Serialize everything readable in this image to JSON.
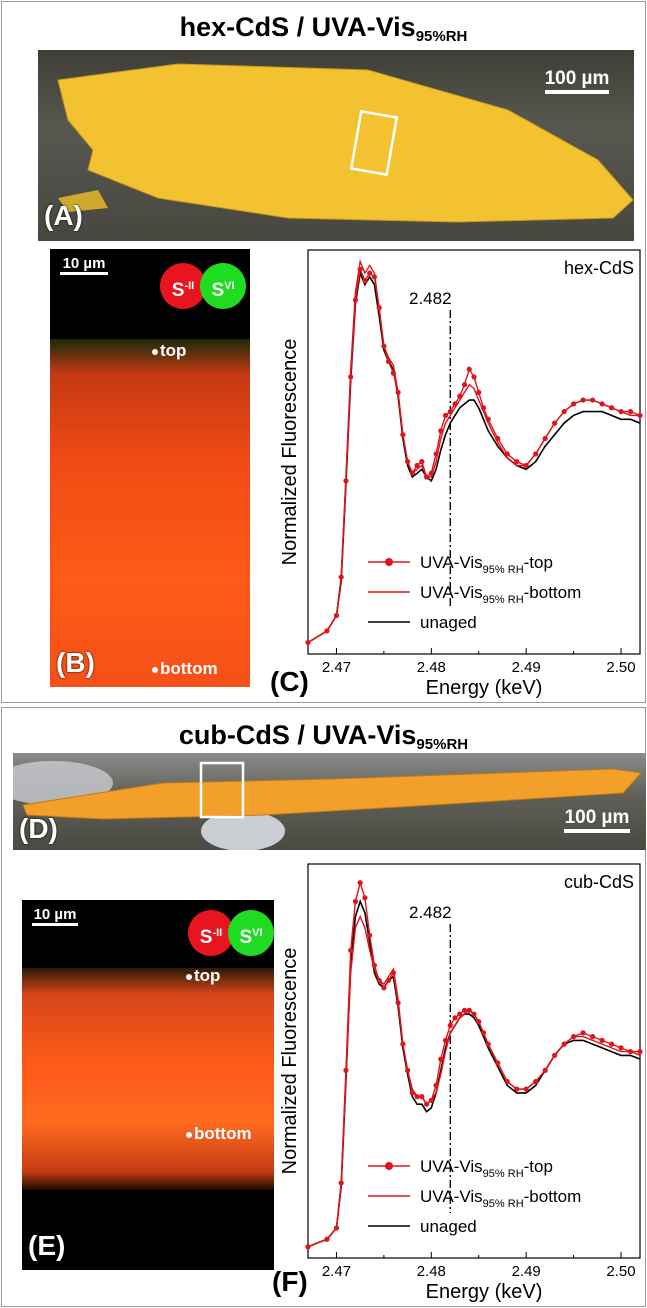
{
  "figure": {
    "top": {
      "title_main": "hex-CdS / UVA-Vis",
      "title_sub": "95%RH",
      "panel_a": {
        "letter": "(A)",
        "scale_label": "100 µm"
      },
      "panel_b": {
        "letter": "(B)",
        "scale_label": "10 µm",
        "marker_top": "top",
        "marker_bottom": "bottom",
        "legend": {
          "left_main": "S",
          "left_sup": "-II",
          "right_main": "S",
          "right_sup": "VI"
        }
      },
      "panel_c_letter": "(C)"
    },
    "bottom": {
      "title_main": "cub-CdS / UVA-Vis",
      "title_sub": "95%RH",
      "panel_d": {
        "letter": "(D)",
        "scale_label": "100 µm"
      },
      "panel_e": {
        "letter": "(E)",
        "scale_label": "10 µm",
        "marker_top": "top",
        "marker_bottom": "bottom",
        "legend": {
          "left_main": "S",
          "left_sup": "-II",
          "right_main": "S",
          "right_sup": "VI"
        }
      },
      "panel_f_letter": "(F)"
    }
  },
  "colors": {
    "pigment_yellow": "#f2c230",
    "pigment_orange": "#f2a02a",
    "xrf_red": "#ff3d10",
    "s2_red": "#e8141e",
    "s6_green": "#1fdc22",
    "series_red": "#e0141b",
    "series_black": "#000000"
  },
  "chart_data": [
    {
      "type": "line",
      "inner_label": "hex-CdS",
      "xlabel": "Energy (keV)",
      "ylabel": "Normalized Fluorescence",
      "xlim": [
        2.467,
        2.502
      ],
      "x_ticks": [
        "2.47",
        "2.48",
        "2.49",
        "2.50"
      ],
      "x_tick_values": [
        2.47,
        2.48,
        2.49,
        2.5
      ],
      "ylim": [
        0,
        1.05
      ],
      "annotation": {
        "label": "2.482",
        "x": 2.482
      },
      "legend": {
        "position": "bottom-right",
        "entries": [
          {
            "main": "UVA-Vis",
            "sub": "95% RH",
            "tail": "-top"
          },
          {
            "main": "UVA-Vis",
            "sub": "95% RH",
            "tail": "-bottom"
          },
          {
            "main": "unaged",
            "sub": "",
            "tail": ""
          }
        ]
      },
      "series": [
        {
          "style": "red-dots",
          "x": [
            2.467,
            2.469,
            2.47,
            2.4705,
            2.471,
            2.4715,
            2.472,
            2.4725,
            2.473,
            2.4735,
            2.474,
            2.4745,
            2.475,
            2.4755,
            2.476,
            2.4765,
            2.477,
            2.4775,
            2.478,
            2.4785,
            2.479,
            2.4795,
            2.48,
            2.4805,
            2.481,
            2.4815,
            2.482,
            2.4825,
            2.483,
            2.4835,
            2.484,
            2.4845,
            2.485,
            2.4855,
            2.486,
            2.487,
            2.488,
            2.489,
            2.49,
            2.491,
            2.492,
            2.493,
            2.494,
            2.495,
            2.496,
            2.497,
            2.498,
            2.499,
            2.5,
            2.501,
            2.502
          ],
          "y": [
            0.03,
            0.06,
            0.1,
            0.2,
            0.45,
            0.72,
            0.92,
            1.0,
            0.97,
            0.99,
            0.98,
            0.9,
            0.8,
            0.76,
            0.73,
            0.68,
            0.57,
            0.5,
            0.47,
            0.49,
            0.5,
            0.46,
            0.47,
            0.52,
            0.58,
            0.62,
            0.63,
            0.65,
            0.67,
            0.7,
            0.74,
            0.72,
            0.68,
            0.64,
            0.61,
            0.56,
            0.52,
            0.5,
            0.49,
            0.52,
            0.56,
            0.6,
            0.63,
            0.65,
            0.66,
            0.66,
            0.65,
            0.64,
            0.63,
            0.63,
            0.62
          ]
        },
        {
          "style": "red-line",
          "x": [
            2.467,
            2.469,
            2.47,
            2.4705,
            2.471,
            2.4715,
            2.472,
            2.4725,
            2.473,
            2.4735,
            2.474,
            2.4745,
            2.475,
            2.4755,
            2.476,
            2.4765,
            2.477,
            2.4775,
            2.478,
            2.4785,
            2.479,
            2.4795,
            2.48,
            2.4805,
            2.481,
            2.4815,
            2.482,
            2.4825,
            2.483,
            2.4835,
            2.484,
            2.4845,
            2.485,
            2.4855,
            2.486,
            2.487,
            2.488,
            2.489,
            2.49,
            2.491,
            2.492,
            2.493,
            2.494,
            2.495,
            2.496,
            2.497,
            2.498,
            2.499,
            2.5,
            2.501,
            2.502
          ],
          "y": [
            0.03,
            0.06,
            0.1,
            0.2,
            0.46,
            0.74,
            0.94,
            1.02,
            0.99,
            1.01,
            0.99,
            0.9,
            0.8,
            0.77,
            0.75,
            0.68,
            0.57,
            0.5,
            0.47,
            0.48,
            0.49,
            0.46,
            0.46,
            0.5,
            0.56,
            0.6,
            0.62,
            0.64,
            0.66,
            0.68,
            0.7,
            0.69,
            0.66,
            0.63,
            0.6,
            0.55,
            0.51,
            0.49,
            0.49,
            0.52,
            0.56,
            0.6,
            0.63,
            0.65,
            0.66,
            0.66,
            0.65,
            0.64,
            0.63,
            0.62,
            0.62
          ]
        },
        {
          "style": "black-line",
          "x": [
            2.467,
            2.469,
            2.47,
            2.4705,
            2.471,
            2.4715,
            2.472,
            2.4725,
            2.473,
            2.4735,
            2.474,
            2.4745,
            2.475,
            2.4755,
            2.476,
            2.4765,
            2.477,
            2.4775,
            2.478,
            2.4785,
            2.479,
            2.4795,
            2.48,
            2.4805,
            2.481,
            2.4815,
            2.482,
            2.4825,
            2.483,
            2.4835,
            2.484,
            2.4845,
            2.485,
            2.4855,
            2.486,
            2.487,
            2.488,
            2.489,
            2.49,
            2.491,
            2.492,
            2.493,
            2.494,
            2.495,
            2.496,
            2.497,
            2.498,
            2.499,
            2.5,
            2.501,
            2.502
          ],
          "y": [
            0.03,
            0.06,
            0.1,
            0.19,
            0.44,
            0.71,
            0.91,
            0.99,
            0.96,
            0.98,
            0.96,
            0.88,
            0.79,
            0.76,
            0.74,
            0.67,
            0.56,
            0.49,
            0.46,
            0.47,
            0.48,
            0.46,
            0.45,
            0.48,
            0.53,
            0.57,
            0.6,
            0.62,
            0.64,
            0.65,
            0.66,
            0.66,
            0.64,
            0.61,
            0.58,
            0.54,
            0.51,
            0.49,
            0.48,
            0.5,
            0.54,
            0.57,
            0.6,
            0.62,
            0.63,
            0.63,
            0.63,
            0.62,
            0.61,
            0.61,
            0.6
          ]
        }
      ]
    },
    {
      "type": "line",
      "inner_label": "cub-CdS",
      "xlabel": "Energy (keV)",
      "ylabel": "Normalized Fluorescence",
      "xlim": [
        2.467,
        2.502
      ],
      "x_ticks": [
        "2.47",
        "2.48",
        "2.49",
        "2.50"
      ],
      "x_tick_values": [
        2.47,
        2.48,
        2.49,
        2.5
      ],
      "ylim": [
        0,
        1.05
      ],
      "annotation": {
        "label": "2.482",
        "x": 2.482
      },
      "legend": {
        "position": "bottom-right",
        "entries": [
          {
            "main": "UVA-Vis",
            "sub": "95% RH",
            "tail": "-top"
          },
          {
            "main": "UVA-Vis",
            "sub": "95% RH",
            "tail": "-bottom"
          },
          {
            "main": "unaged",
            "sub": "",
            "tail": ""
          }
        ]
      },
      "series": [
        {
          "style": "red-dots",
          "x": [
            2.467,
            2.469,
            2.47,
            2.4705,
            2.471,
            2.4715,
            2.472,
            2.4725,
            2.473,
            2.4735,
            2.474,
            2.4745,
            2.475,
            2.4755,
            2.476,
            2.4765,
            2.477,
            2.4775,
            2.478,
            2.4785,
            2.479,
            2.4795,
            2.48,
            2.4805,
            2.481,
            2.4815,
            2.482,
            2.4825,
            2.483,
            2.4835,
            2.484,
            2.4845,
            2.485,
            2.4855,
            2.486,
            2.487,
            2.488,
            2.489,
            2.49,
            2.491,
            2.492,
            2.493,
            2.494,
            2.495,
            2.496,
            2.497,
            2.498,
            2.499,
            2.5,
            2.501,
            2.502
          ],
          "y": [
            0.03,
            0.05,
            0.08,
            0.2,
            0.5,
            0.82,
            0.95,
            1.0,
            0.96,
            0.86,
            0.78,
            0.74,
            0.72,
            0.74,
            0.76,
            0.68,
            0.57,
            0.5,
            0.44,
            0.43,
            0.43,
            0.41,
            0.42,
            0.46,
            0.53,
            0.58,
            0.62,
            0.64,
            0.65,
            0.66,
            0.66,
            0.65,
            0.63,
            0.6,
            0.57,
            0.52,
            0.47,
            0.45,
            0.45,
            0.47,
            0.5,
            0.54,
            0.57,
            0.59,
            0.6,
            0.59,
            0.58,
            0.57,
            0.56,
            0.55,
            0.55
          ]
        },
        {
          "style": "red-line",
          "x": [
            2.467,
            2.469,
            2.47,
            2.4705,
            2.471,
            2.4715,
            2.472,
            2.4725,
            2.473,
            2.4735,
            2.474,
            2.4745,
            2.475,
            2.4755,
            2.476,
            2.4765,
            2.477,
            2.4775,
            2.478,
            2.4785,
            2.479,
            2.4795,
            2.48,
            2.4805,
            2.481,
            2.4815,
            2.482,
            2.4825,
            2.483,
            2.4835,
            2.484,
            2.4845,
            2.485,
            2.4855,
            2.486,
            2.487,
            2.488,
            2.489,
            2.49,
            2.491,
            2.492,
            2.493,
            2.494,
            2.495,
            2.496,
            2.497,
            2.498,
            2.499,
            2.5,
            2.501,
            2.502
          ],
          "y": [
            0.03,
            0.05,
            0.08,
            0.2,
            0.48,
            0.76,
            0.88,
            0.91,
            0.88,
            0.82,
            0.77,
            0.74,
            0.73,
            0.75,
            0.77,
            0.69,
            0.57,
            0.5,
            0.45,
            0.43,
            0.43,
            0.41,
            0.42,
            0.44,
            0.49,
            0.55,
            0.6,
            0.62,
            0.64,
            0.65,
            0.66,
            0.65,
            0.63,
            0.6,
            0.57,
            0.52,
            0.47,
            0.45,
            0.45,
            0.47,
            0.5,
            0.54,
            0.57,
            0.59,
            0.59,
            0.58,
            0.57,
            0.56,
            0.55,
            0.55,
            0.54
          ]
        },
        {
          "style": "black-line",
          "x": [
            2.467,
            2.469,
            2.47,
            2.4705,
            2.471,
            2.4715,
            2.472,
            2.4725,
            2.473,
            2.4735,
            2.474,
            2.4745,
            2.475,
            2.4755,
            2.476,
            2.4765,
            2.477,
            2.4775,
            2.478,
            2.4785,
            2.479,
            2.4795,
            2.48,
            2.4805,
            2.481,
            2.4815,
            2.482,
            2.4825,
            2.483,
            2.4835,
            2.484,
            2.4845,
            2.485,
            2.4855,
            2.486,
            2.487,
            2.488,
            2.489,
            2.49,
            2.491,
            2.492,
            2.493,
            2.494,
            2.495,
            2.496,
            2.497,
            2.498,
            2.499,
            2.5,
            2.501,
            2.502
          ],
          "y": [
            0.03,
            0.05,
            0.08,
            0.19,
            0.47,
            0.78,
            0.91,
            0.95,
            0.92,
            0.84,
            0.76,
            0.73,
            0.72,
            0.74,
            0.75,
            0.67,
            0.56,
            0.49,
            0.43,
            0.41,
            0.41,
            0.39,
            0.4,
            0.44,
            0.5,
            0.56,
            0.6,
            0.62,
            0.64,
            0.65,
            0.65,
            0.64,
            0.62,
            0.59,
            0.56,
            0.51,
            0.46,
            0.44,
            0.44,
            0.46,
            0.5,
            0.54,
            0.57,
            0.58,
            0.58,
            0.57,
            0.56,
            0.55,
            0.54,
            0.54,
            0.53
          ]
        }
      ]
    }
  ]
}
